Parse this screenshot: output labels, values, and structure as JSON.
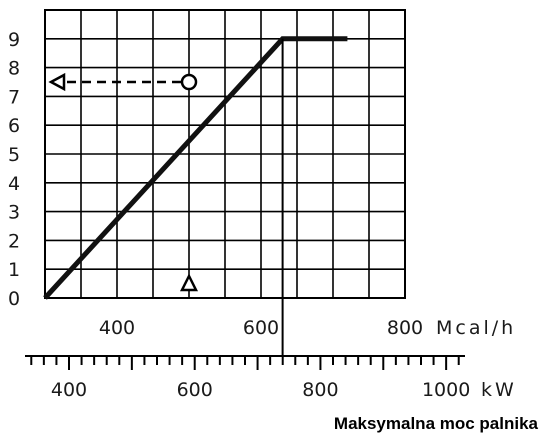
{
  "chart_data": {
    "type": "line",
    "x_axis_primary": {
      "unit": "Mcal/h",
      "range": [
        300,
        800
      ],
      "tick_labels": [
        "400",
        "600",
        "800"
      ]
    },
    "x_axis_secondary": {
      "unit": "kW",
      "range": [
        330,
        1030
      ],
      "tick_labels": [
        "400",
        "600",
        "800",
        "1000"
      ]
    },
    "y_axis": {
      "range": [
        0,
        10
      ],
      "tick_labels": [
        "0",
        "1",
        "2",
        "3",
        "4",
        "5",
        "6",
        "7",
        "8",
        "9"
      ]
    },
    "series": [
      {
        "x": [
          300,
          630,
          720
        ],
        "y": [
          0,
          9,
          9
        ]
      }
    ],
    "example_point": {
      "x": 500,
      "y": 7.5
    },
    "grid": true
  },
  "footer_label": "Maksymalna moc palnika"
}
